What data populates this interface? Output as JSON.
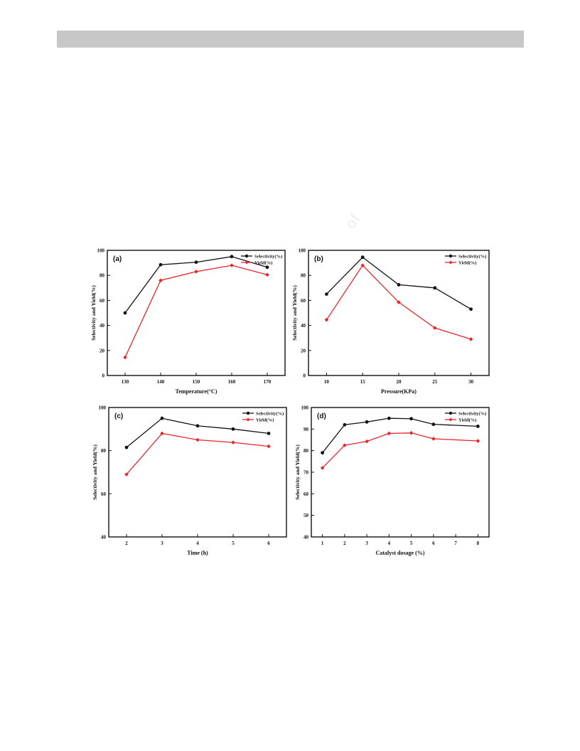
{
  "header_bar": "",
  "watermark_text": "of",
  "watermark_text2": "",
  "colors": {
    "selectivity": "#111111",
    "yield": "#e8262a",
    "bar": "#c7c7c7"
  },
  "chart_data": [
    {
      "type": "line",
      "panel_label": "(a)",
      "xlabel": "Temperature(°C)",
      "ylabel": "Selectivity and Yield(%)",
      "x": [
        130,
        140,
        150,
        160,
        170
      ],
      "xticks": [
        "130",
        "140",
        "150",
        "160",
        "170"
      ],
      "xlim": [
        125,
        175
      ],
      "ylim": [
        0,
        100
      ],
      "yticks": [
        0,
        20,
        40,
        60,
        80,
        100
      ],
      "legend_position": "top-right",
      "series": [
        {
          "name": "Selectivity(%)",
          "color": "#111111",
          "marker": "circle",
          "values": [
            50,
            88.5,
            90.5,
            95,
            86.5
          ]
        },
        {
          "name": "Yield(%)",
          "color": "#e8262a",
          "marker": "diamond",
          "values": [
            14.5,
            76,
            83,
            88,
            80.5
          ]
        }
      ]
    },
    {
      "type": "line",
      "panel_label": "(b)",
      "xlabel": "Pressure(KPa)",
      "ylabel": "Selectivity and Yield(%)",
      "x": [
        10,
        15,
        20,
        25,
        30
      ],
      "xticks": [
        "10",
        "15",
        "20",
        "25",
        "30"
      ],
      "xlim": [
        7.5,
        32.5
      ],
      "ylim": [
        0,
        100
      ],
      "yticks": [
        0,
        20,
        40,
        60,
        80,
        100
      ],
      "legend_position": "top-right",
      "series": [
        {
          "name": "Selectivity(%)",
          "color": "#111111",
          "marker": "circle",
          "values": [
            65,
            94.5,
            72.5,
            70,
            53
          ]
        },
        {
          "name": "Yield(%)",
          "color": "#e8262a",
          "marker": "diamond",
          "values": [
            44.5,
            88,
            58.5,
            38,
            29
          ]
        }
      ]
    },
    {
      "type": "line",
      "panel_label": "(c)",
      "xlabel": "Time (h)",
      "ylabel": "Selectivity and Yield(%)",
      "x": [
        2,
        3,
        4,
        5,
        6
      ],
      "xticks": [
        "2",
        "3",
        "4",
        "5",
        "6"
      ],
      "xlim": [
        1.5,
        6.5
      ],
      "ylim": [
        40,
        100
      ],
      "yticks": [
        40,
        60,
        80,
        100
      ],
      "legend_position": "top-right",
      "series": [
        {
          "name": "Selectivity(%)",
          "color": "#111111",
          "marker": "circle",
          "values": [
            81.5,
            95,
            91.5,
            90,
            88
          ]
        },
        {
          "name": "Yield(%)",
          "color": "#e8262a",
          "marker": "diamond",
          "values": [
            69,
            88,
            85,
            83.8,
            82
          ]
        }
      ]
    },
    {
      "type": "line",
      "panel_label": "(d)",
      "xlabel": "Catalyst dosage (%)",
      "ylabel": "Selectivity and Yield(%)",
      "x": [
        1,
        2,
        3,
        4,
        5,
        6,
        8
      ],
      "xticks": [
        "1",
        "2",
        "3",
        "4",
        "5",
        "6",
        "7",
        "8"
      ],
      "xtick_values": [
        1,
        2,
        3,
        4,
        5,
        6,
        7,
        8
      ],
      "xlim": [
        0.5,
        8.5
      ],
      "ylim": [
        40,
        100
      ],
      "yticks": [
        40,
        50,
        60,
        70,
        80,
        90,
        100
      ],
      "legend_position": "top-right",
      "series": [
        {
          "name": "Selectivity(%)",
          "color": "#111111",
          "marker": "circle",
          "values": [
            79,
            92,
            93.3,
            95,
            94.8,
            92.2,
            91.3
          ]
        },
        {
          "name": "Yield(%)",
          "color": "#e8262a",
          "marker": "diamond",
          "values": [
            72,
            82.5,
            84.3,
            88,
            88.2,
            85.5,
            84.5
          ]
        }
      ]
    }
  ]
}
